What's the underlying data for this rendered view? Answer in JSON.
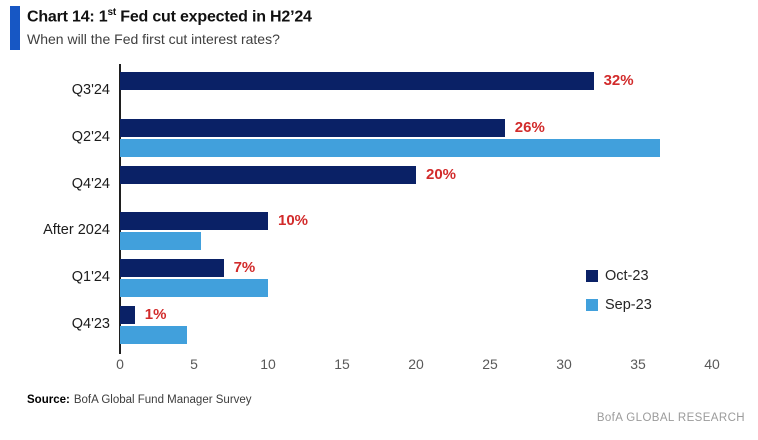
{
  "header": {
    "title_before_sup": "Chart 14: 1",
    "title_sup": "st",
    "title_after_sup": " Fed cut expected in H2’24",
    "subtitle": "When will the Fed first cut interest rates?",
    "accent_color": "#1757c4"
  },
  "chart_data": {
    "type": "bar",
    "orientation": "horizontal",
    "title": "Chart 14: 1st Fed cut expected in H2'24",
    "subtitle": "When will the Fed first cut interest rates?",
    "categories": [
      "Q3'24",
      "Q2'24",
      "Q4'24",
      "After 2024",
      "Q1'24",
      "Q4'23"
    ],
    "series": [
      {
        "name": "Oct-23",
        "color": "#0a2166",
        "values": [
          32,
          26,
          20,
          10,
          7,
          1
        ],
        "data_labels": [
          "32%",
          "26%",
          "20%",
          "10%",
          "7%",
          "1%"
        ]
      },
      {
        "name": "Sep-23",
        "color": "#41a0dc",
        "values": [
          0,
          36.5,
          0,
          5.5,
          10,
          4.5
        ],
        "data_labels": null
      }
    ],
    "xlim": [
      0,
      40
    ],
    "xticks": [
      0,
      5,
      10,
      15,
      20,
      25,
      30,
      35,
      40
    ],
    "grid": false,
    "legend_position": "right-middle",
    "value_label_color": "#d22b2b",
    "axis_line_color": "#1f1f1f"
  },
  "footer": {
    "source_label": "Source:",
    "source_text": "BofA Global Fund Manager Survey",
    "brand": "BofA GLOBAL RESEARCH"
  }
}
